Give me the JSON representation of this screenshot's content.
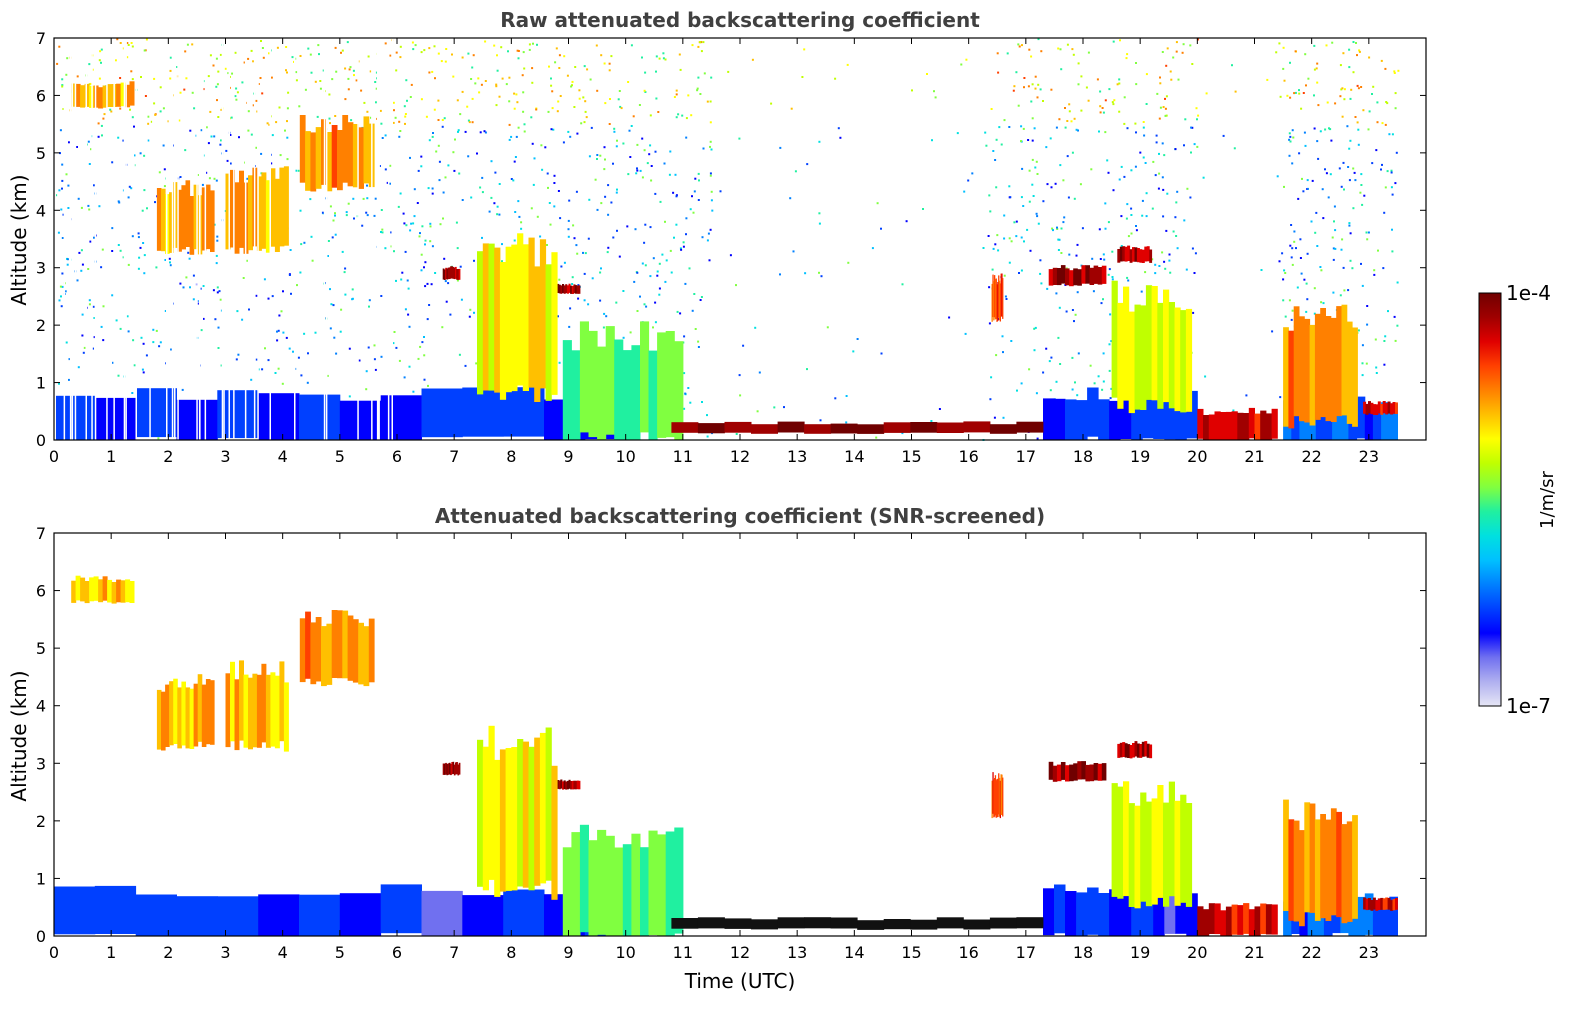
{
  "chart_data": [
    {
      "type": "heatmap",
      "title": "Raw attenuated backscattering coefficient",
      "xlabel": "",
      "ylabel": "Altitude (km)",
      "xlim": [
        0,
        24
      ],
      "ylim": [
        0,
        7
      ],
      "x_ticks": [
        0,
        1,
        2,
        3,
        4,
        5,
        6,
        7,
        8,
        9,
        10,
        11,
        12,
        13,
        14,
        15,
        16,
        17,
        18,
        19,
        20,
        21,
        22,
        23
      ],
      "y_ticks": [
        0,
        1,
        2,
        3,
        4,
        5,
        6,
        7
      ],
      "data_end_hour": 23.5,
      "features": [
        {
          "name": "boundary layer aerosol",
          "t0": 0,
          "t1": 10,
          "z0": 0,
          "z1": 0.8,
          "level": 0.2
        },
        {
          "name": "boundary layer aerosol",
          "t0": 17.3,
          "t1": 20,
          "z0": 0,
          "z1": 0.8,
          "level": 0.2
        },
        {
          "name": "boundary layer aerosol",
          "t0": 21.5,
          "t1": 23.5,
          "z0": 0,
          "z1": 0.7,
          "level": 0.25
        },
        {
          "name": "mid-level cloud",
          "t0": 1.8,
          "t1": 2.8,
          "z0": 3.3,
          "z1": 4.4,
          "level": 0.72
        },
        {
          "name": "mid-level cloud",
          "t0": 3.0,
          "t1": 4.1,
          "z0": 3.3,
          "z1": 4.6,
          "level": 0.72
        },
        {
          "name": "mid-level cloud",
          "t0": 4.3,
          "t1": 5.6,
          "z0": 4.4,
          "z1": 5.5,
          "level": 0.74
        },
        {
          "name": "cloud top",
          "t0": 0.3,
          "t1": 1.4,
          "z0": 5.8,
          "z1": 6.2,
          "level": 0.7
        },
        {
          "name": "cloud layer",
          "t0": 6.8,
          "t1": 7.1,
          "z0": 2.8,
          "z1": 3.0,
          "level": 0.95
        },
        {
          "name": "cloud layer",
          "t0": 8.8,
          "t1": 9.2,
          "z0": 2.55,
          "z1": 2.7,
          "level": 0.95
        },
        {
          "name": "descending virga",
          "t0": 7.4,
          "t1": 8.8,
          "z0": 0.8,
          "z1": 3.3,
          "level": 0.65
        },
        {
          "name": "precipitation",
          "t0": 8.9,
          "t1": 11.0,
          "z0": 0,
          "z1": 1.8,
          "level": 0.5
        },
        {
          "name": "stratocumulus layer",
          "t0": 10.8,
          "t1": 17.3,
          "z0": 0.12,
          "z1": 0.3,
          "level": 0.97
        },
        {
          "name": "cloud",
          "t0": 16.4,
          "t1": 16.6,
          "z0": 2.1,
          "z1": 2.8,
          "level": 0.8
        },
        {
          "name": "cloud layer",
          "t0": 17.4,
          "t1": 18.4,
          "z0": 2.7,
          "z1": 3.0,
          "level": 0.95
        },
        {
          "name": "cloud layer",
          "t0": 18.6,
          "t1": 19.2,
          "z0": 3.1,
          "z1": 3.35,
          "level": 0.93
        },
        {
          "name": "descending virga",
          "t0": 18.5,
          "t1": 19.9,
          "z0": 0.6,
          "z1": 2.5,
          "level": 0.62
        },
        {
          "name": "precipitation",
          "t0": 20.0,
          "t1": 21.4,
          "z0": 0,
          "z1": 0.5,
          "level": 0.9
        },
        {
          "name": "convective cloud",
          "t0": 21.5,
          "t1": 22.8,
          "z0": 0.3,
          "z1": 2.1,
          "level": 0.75
        },
        {
          "name": "cloud layer",
          "t0": 22.9,
          "t1": 23.5,
          "z0": 0.45,
          "z1": 0.65,
          "level": 0.9
        }
      ]
    },
    {
      "type": "heatmap",
      "title": "Attenuated backscattering coefficient (SNR-screened)",
      "xlabel": "Time (UTC)",
      "ylabel": "Altitude (km)",
      "xlim": [
        0,
        24
      ],
      "ylim": [
        0,
        7
      ],
      "x_ticks": [
        0,
        1,
        2,
        3,
        4,
        5,
        6,
        7,
        8,
        9,
        10,
        11,
        12,
        13,
        14,
        15,
        16,
        17,
        18,
        19,
        20,
        21,
        22,
        23
      ],
      "y_ticks": [
        0,
        1,
        2,
        3,
        4,
        5,
        6,
        7
      ],
      "data_end_hour": 23.5
    }
  ],
  "colorbar": {
    "top_label": "1e-4",
    "bottom_label": "1e-7",
    "label": "1/m/sr",
    "colors": [
      "#e6e6f5",
      "#b0b0f0",
      "#7070f0",
      "#0000ff",
      "#0040ff",
      "#0080ff",
      "#00c0ff",
      "#00e0e0",
      "#20f0a0",
      "#80ff40",
      "#c0ff00",
      "#ffff00",
      "#ffc000",
      "#ff8000",
      "#ff4000",
      "#e00000",
      "#a00000",
      "#700000"
    ]
  }
}
